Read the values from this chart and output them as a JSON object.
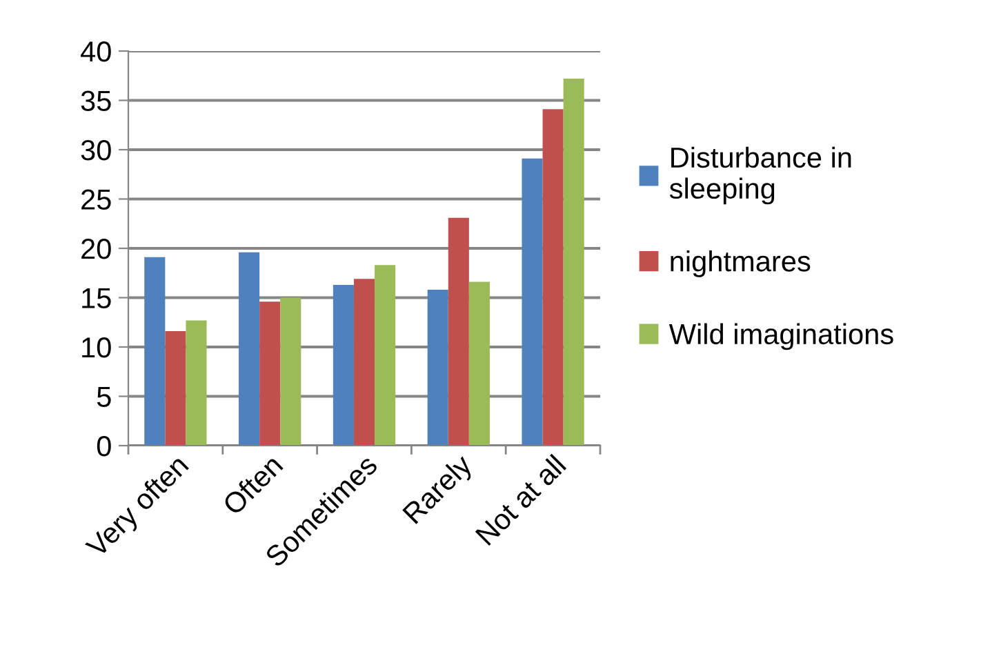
{
  "chart_data": {
    "type": "bar",
    "categories": [
      "Very often",
      "Often",
      "Sometimes",
      "Rarely",
      "Not at all"
    ],
    "series": [
      {
        "name": "Disturbance in\nsleeping",
        "color": "#4f81bd",
        "values": [
          19.1,
          19.6,
          16.3,
          15.8,
          29.1
        ]
      },
      {
        "name": "nightmares",
        "color": "#c0504d",
        "values": [
          11.6,
          14.6,
          16.9,
          23.1,
          34.1
        ]
      },
      {
        "name": "Wild imaginations",
        "color": "#9bbb59",
        "values": [
          12.7,
          15.0,
          18.3,
          16.6,
          37.2
        ]
      }
    ],
    "ylim": [
      0,
      40
    ],
    "yticks": [
      0,
      5,
      10,
      15,
      20,
      25,
      30,
      35,
      40
    ],
    "grid": "y",
    "legend": "right"
  }
}
